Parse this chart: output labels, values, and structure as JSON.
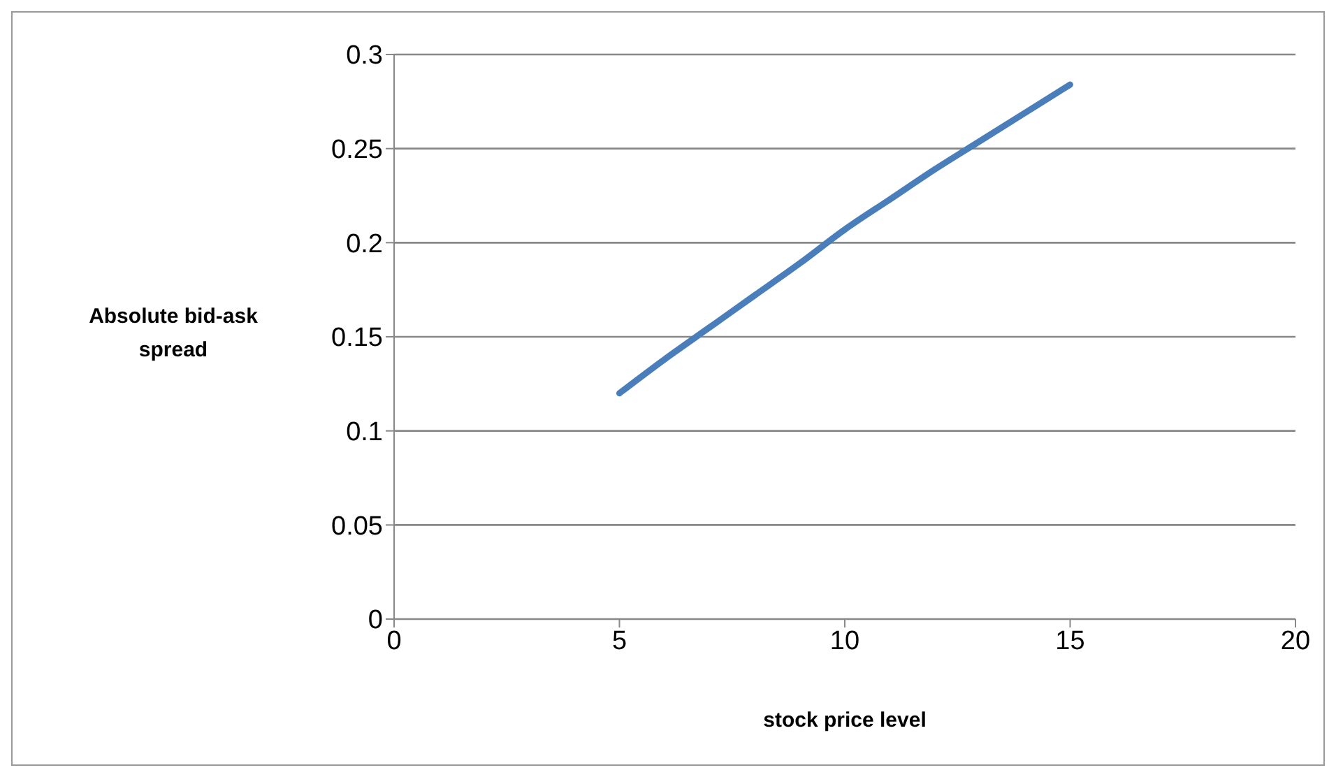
{
  "chart_data": {
    "type": "line",
    "xlabel": "stock price level",
    "ylabel": "Absolute bid-ask spread",
    "x": [
      5,
      6,
      7,
      8,
      9,
      10,
      11,
      12,
      13,
      14,
      15
    ],
    "series": [
      {
        "color": "#4a7ebb",
        "values": [
          0.12,
          0.138,
          0.155,
          0.172,
          0.189,
          0.207,
          0.223,
          0.239,
          0.254,
          0.269,
          0.284
        ]
      }
    ],
    "xlim": [
      0,
      20
    ],
    "xticks": [
      0,
      5,
      10,
      15,
      20
    ],
    "ylim": [
      0,
      0.3
    ],
    "yticks": [
      0,
      0.05,
      0.1,
      0.15,
      0.2,
      0.25,
      0.3
    ],
    "grid": "y",
    "legend": false,
    "marker": "none",
    "line_style": "solid"
  }
}
